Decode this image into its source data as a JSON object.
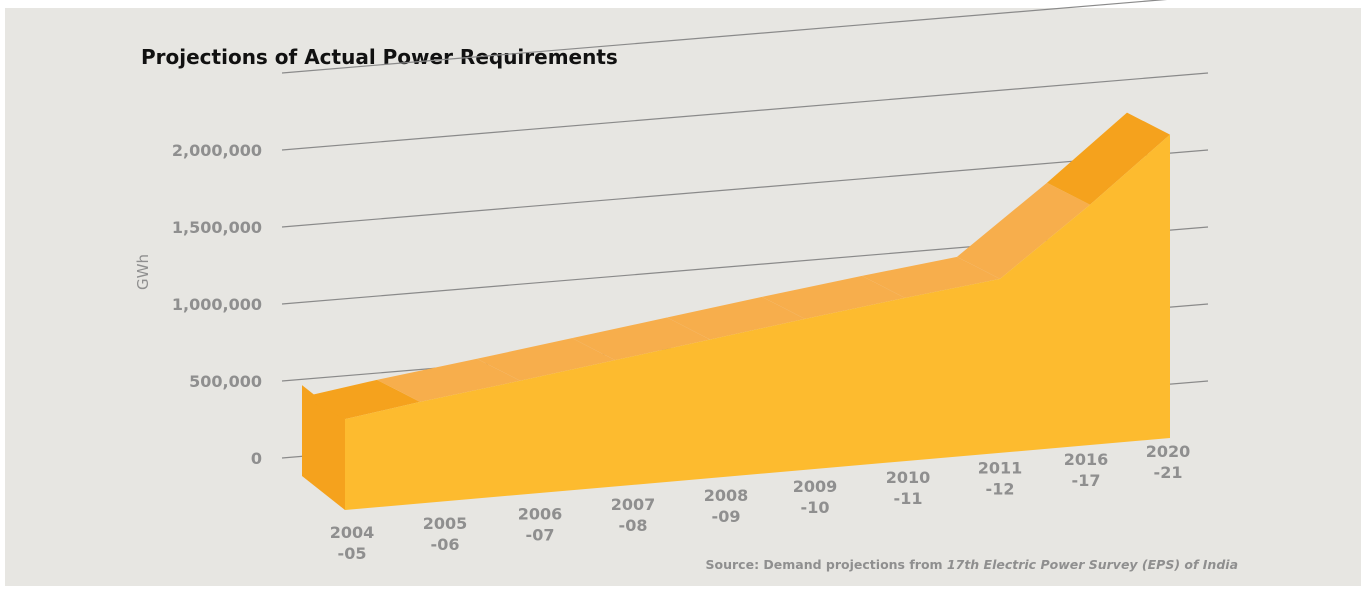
{
  "chart_data": {
    "type": "area",
    "title": "Projections of Actual Power Requirements",
    "ylabel": "GWh",
    "xlabel": "",
    "ylim": [
      0,
      2500000
    ],
    "yticks": [
      "0",
      "500,000",
      "1,000,000",
      "1,500,000",
      "2,000,000"
    ],
    "ytick_values": [
      0,
      500000,
      1000000,
      1500000,
      2000000
    ],
    "grid": true,
    "categories": [
      [
        "2004",
        "-05"
      ],
      [
        "2005",
        "-06"
      ],
      [
        "2006",
        "-07"
      ],
      [
        "2007",
        "-08"
      ],
      [
        "2008",
        "-09"
      ],
      [
        "2009",
        "-10"
      ],
      [
        "2010",
        "-11"
      ],
      [
        "2011",
        "-12"
      ],
      [
        "2016",
        "-17"
      ],
      [
        "2020",
        "-21"
      ]
    ],
    "series": [
      {
        "values": [
          590000,
          660000,
          740000,
          820000,
          900000,
          980000,
          1060000,
          1130000,
          1560000,
          1970000
        ]
      }
    ],
    "colors": {
      "front": "#fdbb2f",
      "top": "#f7ae4c",
      "side": "#f5a21d",
      "grid": "#8a8a8a"
    }
  },
  "source": {
    "prefix": "Source: Demand projections from ",
    "italic": "17th Electric Power Survey (EPS) of India"
  }
}
